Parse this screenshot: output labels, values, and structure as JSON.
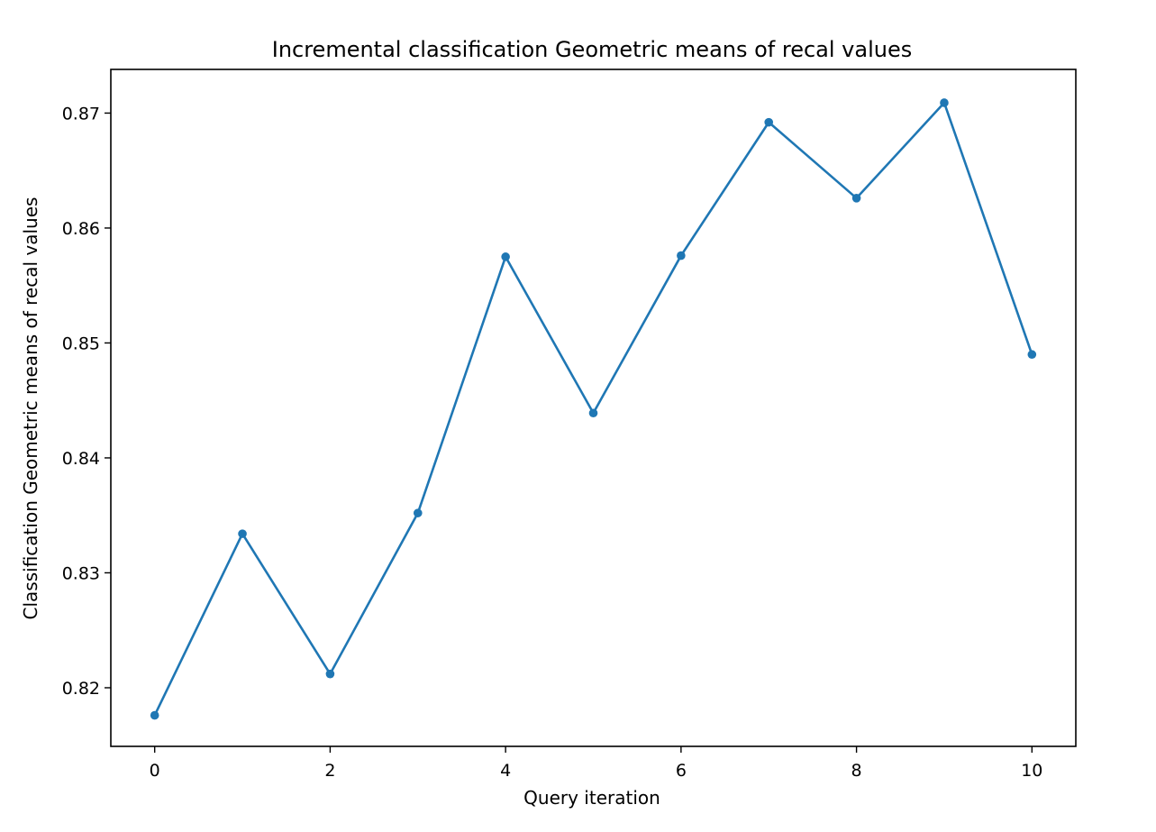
{
  "chart_data": {
    "type": "line",
    "title": "Incremental classification Geometric means of recal values",
    "xlabel": "Query iteration",
    "ylabel": "Classification Geometric means of recal values",
    "x": [
      0,
      1,
      2,
      3,
      4,
      5,
      6,
      7,
      8,
      9,
      10
    ],
    "series": [
      {
        "values": [
          0.8176,
          0.8334,
          0.8212,
          0.8352,
          0.8575,
          0.8439,
          0.8576,
          0.8692,
          0.8626,
          0.8709,
          0.849
        ],
        "color": "#1f77b4",
        "marker": "circle"
      }
    ],
    "xticks": [
      0,
      2,
      4,
      6,
      8,
      10
    ],
    "xtick_labels": [
      "0",
      "2",
      "4",
      "6",
      "8",
      "10"
    ],
    "yticks": [
      0.82,
      0.83,
      0.84,
      0.85,
      0.86,
      0.87
    ],
    "ytick_labels": [
      "0.82",
      "0.83",
      "0.84",
      "0.85",
      "0.86",
      "0.87"
    ],
    "xlim": [
      -0.5,
      10.5
    ],
    "ylim": [
      0.8149,
      0.8738
    ],
    "grid": false,
    "legend": "none"
  }
}
